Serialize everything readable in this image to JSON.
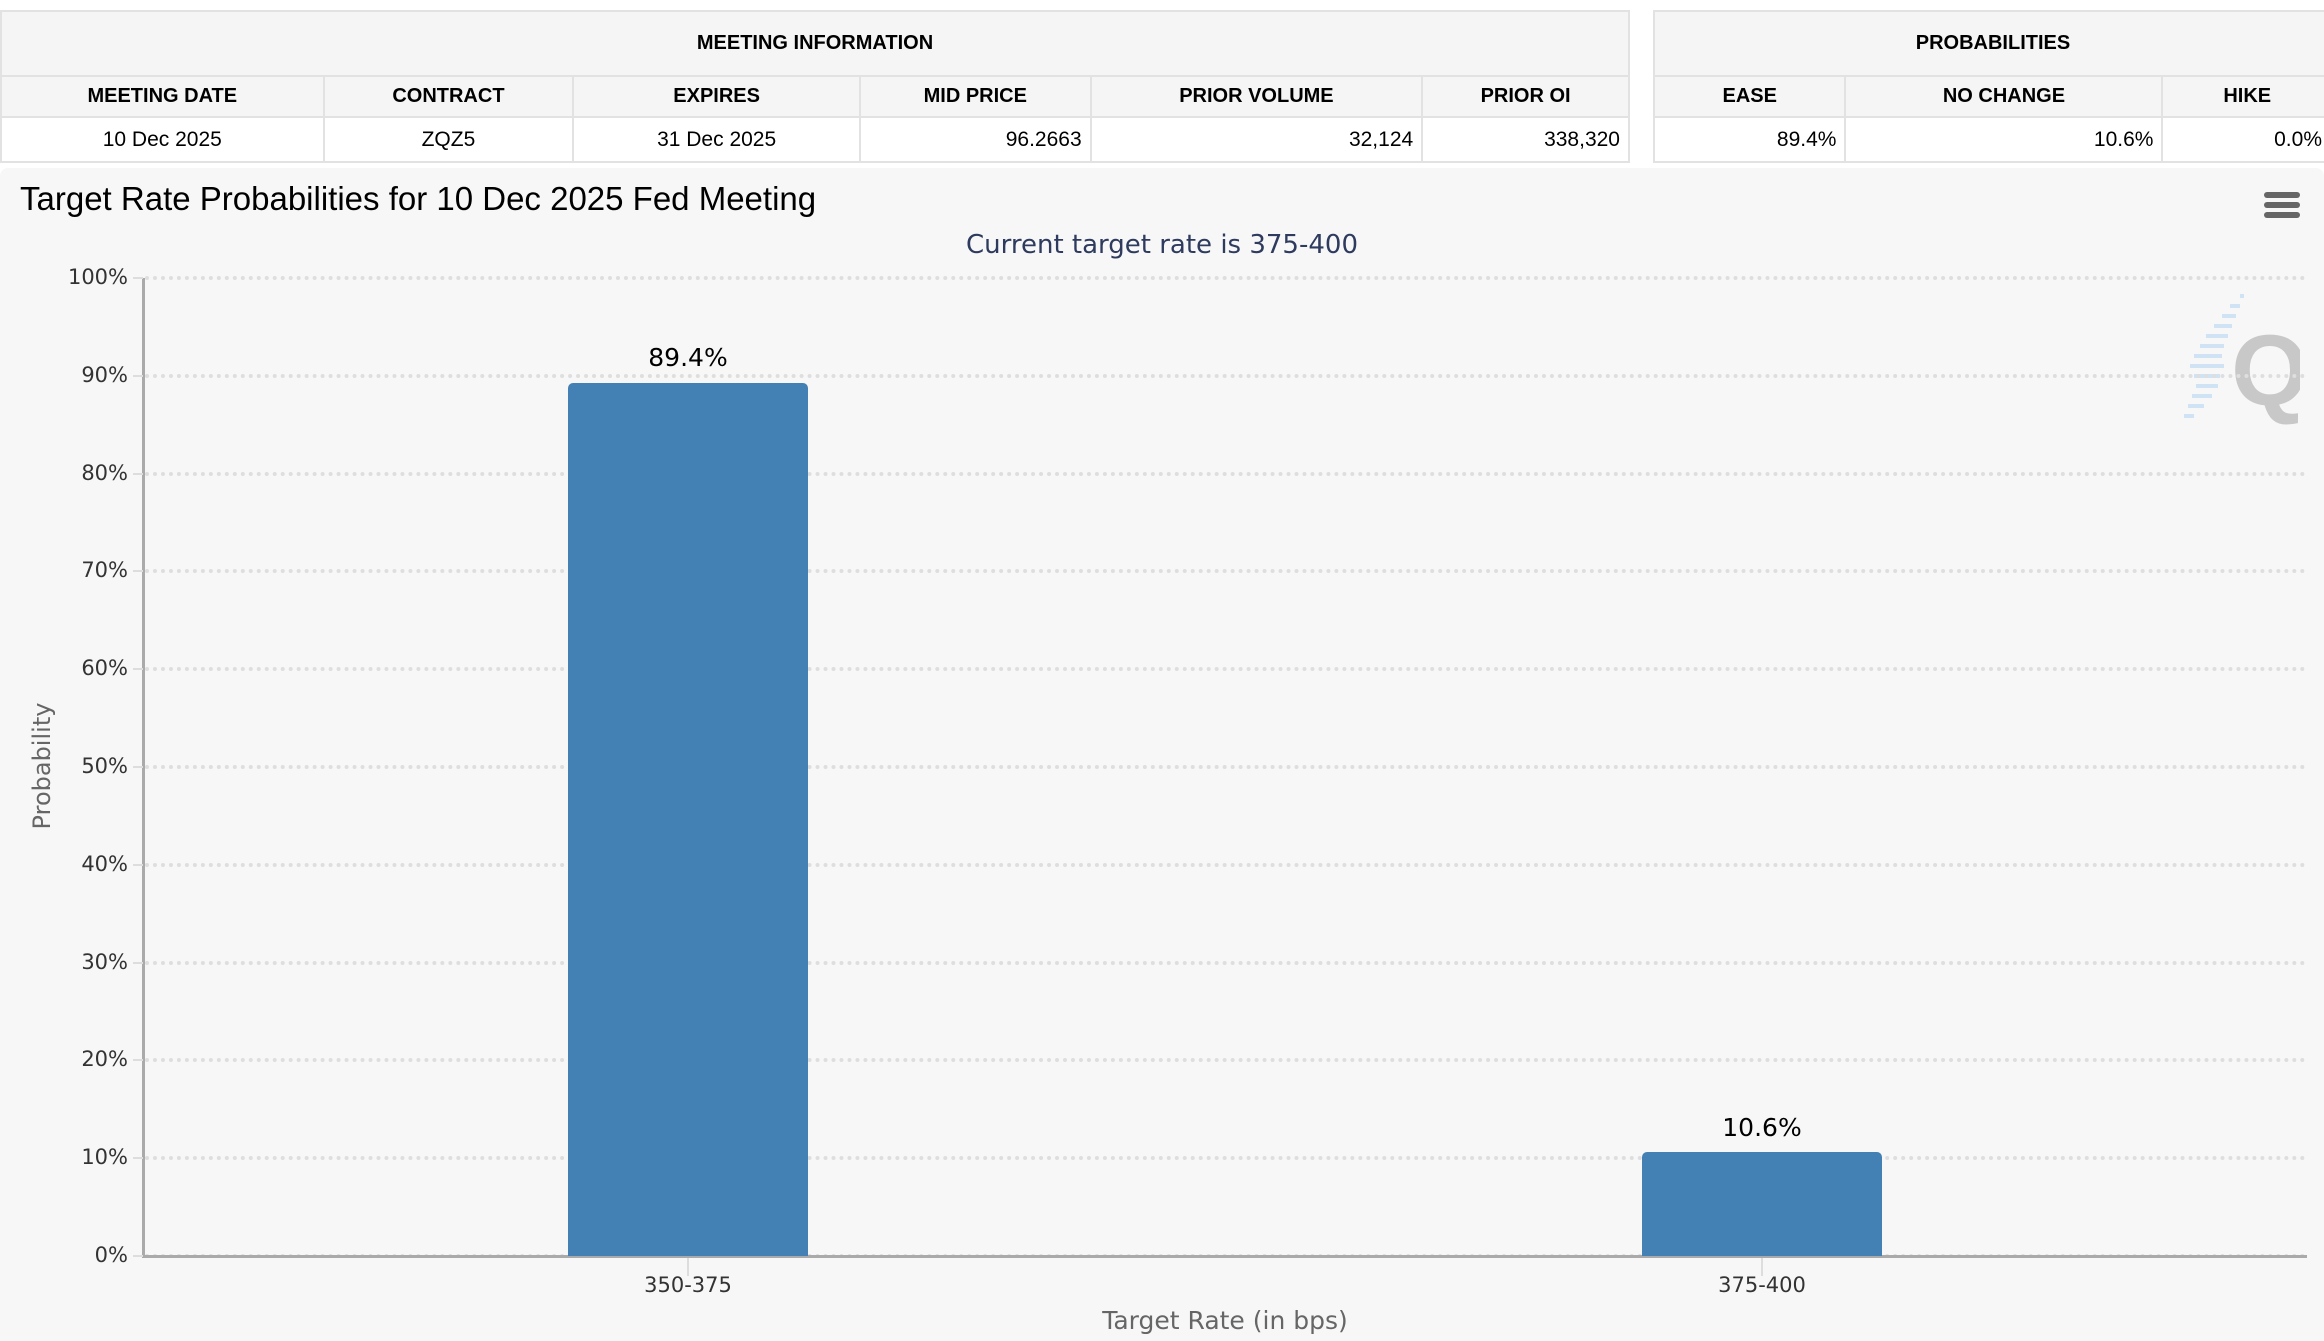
{
  "meeting_info": {
    "title": "MEETING INFORMATION",
    "headers": [
      "MEETING DATE",
      "CONTRACT",
      "EXPIRES",
      "MID PRICE",
      "PRIOR VOLUME",
      "PRIOR OI"
    ],
    "row": [
      "10 Dec 2025",
      "ZQZ5",
      "31 Dec 2025",
      "96.2663",
      "32,124",
      "338,320"
    ]
  },
  "probabilities": {
    "title": "PROBABILITIES",
    "headers": [
      "EASE",
      "NO CHANGE",
      "HIKE"
    ],
    "row": [
      "89.4%",
      "10.6%",
      "0.0%"
    ]
  },
  "chart": {
    "menu_icon": "hamburger-menu-icon",
    "watermark_icon": "q-logo-icon",
    "bar_color": "#4380b4",
    "subtitle_color": "#2e3b5e"
  },
  "chart_data": {
    "type": "bar",
    "title": "Target Rate Probabilities for 10 Dec 2025 Fed Meeting",
    "subtitle": "Current target rate is 375-400",
    "categories": [
      "350-375",
      "375-400"
    ],
    "values": [
      89.4,
      10.6
    ],
    "value_labels": [
      "89.4%",
      "10.6%"
    ],
    "xlabel": "Target Rate (in bps)",
    "ylabel": "Probability",
    "ylim": [
      0,
      100
    ],
    "yticks": [
      "0%",
      "10%",
      "20%",
      "30%",
      "40%",
      "50%",
      "60%",
      "70%",
      "80%",
      "90%",
      "100%"
    ],
    "grid": true,
    "legend": "none"
  }
}
